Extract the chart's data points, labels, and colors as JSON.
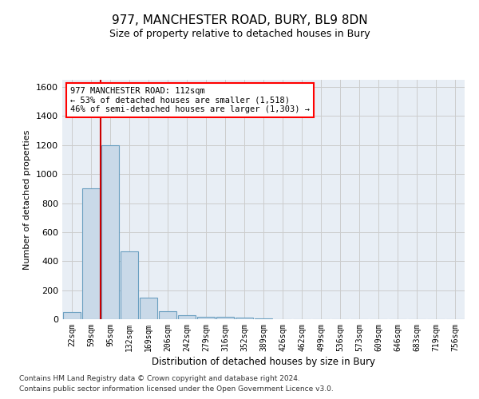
{
  "title": "977, MANCHESTER ROAD, BURY, BL9 8DN",
  "subtitle": "Size of property relative to detached houses in Bury",
  "xlabel": "Distribution of detached houses by size in Bury",
  "ylabel": "Number of detached properties",
  "footer_line1": "Contains HM Land Registry data © Crown copyright and database right 2024.",
  "footer_line2": "Contains public sector information licensed under the Open Government Licence v3.0.",
  "bar_labels": [
    "22sqm",
    "59sqm",
    "95sqm",
    "132sqm",
    "169sqm",
    "206sqm",
    "242sqm",
    "279sqm",
    "316sqm",
    "352sqm",
    "389sqm",
    "426sqm",
    "462sqm",
    "499sqm",
    "536sqm",
    "573sqm",
    "609sqm",
    "646sqm",
    "683sqm",
    "719sqm",
    "756sqm"
  ],
  "bar_values": [
    50,
    900,
    1200,
    470,
    150,
    55,
    30,
    18,
    18,
    10,
    5,
    0,
    0,
    0,
    0,
    0,
    0,
    0,
    0,
    0,
    0
  ],
  "bar_color": "#c9d9e8",
  "bar_edge_color": "#6a9fc0",
  "vline_x": 1.5,
  "annotation_box_text": "977 MANCHESTER ROAD: 112sqm\n← 53% of detached houses are smaller (1,518)\n46% of semi-detached houses are larger (1,303) →",
  "ylim": [
    0,
    1650
  ],
  "yticks": [
    0,
    200,
    400,
    600,
    800,
    1000,
    1200,
    1400,
    1600
  ],
  "grid_color": "#cccccc",
  "bg_color": "#e8eef5",
  "fig_bg_color": "#ffffff"
}
